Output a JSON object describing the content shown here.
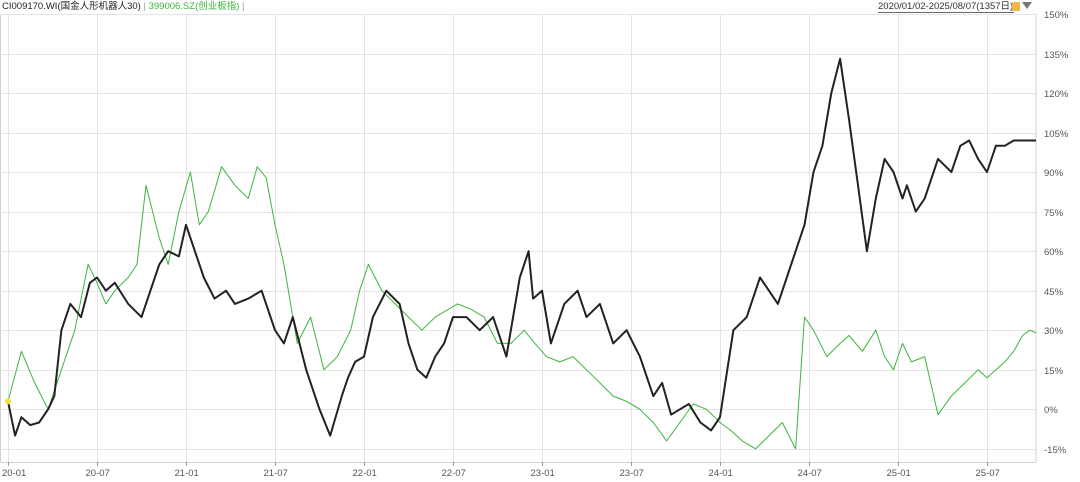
{
  "header": {
    "series1_label": "CI009170.WI(国金人形机器人30)",
    "separator": "|",
    "series2_label": "399006.SZ(创业板指)",
    "range_label": "2020/01/02-2025/08/07(1357日)",
    "colors": {
      "series1": "#222222",
      "series2": "#3db53d"
    }
  },
  "chart_data": {
    "type": "line",
    "x_axis": {
      "tick_labels": [
        "20-01",
        "20-07",
        "21-01",
        "21-07",
        "22-01",
        "22-07",
        "23-01",
        "23-07",
        "24-01",
        "24-07",
        "25-01",
        "25-07"
      ]
    },
    "y_axis": {
      "unit": "%",
      "ylim": [
        -20,
        150
      ],
      "ticks": [
        -15,
        0,
        15,
        30,
        45,
        60,
        75,
        90,
        105,
        120,
        135,
        150
      ],
      "tick_labels": [
        "-15%",
        "0%",
        "15%",
        "30%",
        "45%",
        "60%",
        "75%",
        "90%",
        "105%",
        "120%",
        "135%",
        "150%"
      ],
      "position": "right"
    },
    "grid": true,
    "series": [
      {
        "color": "#222222",
        "x": [
          0,
          0.08,
          0.15,
          0.25,
          0.35,
          0.45,
          0.52,
          0.6,
          0.7,
          0.82,
          0.92,
          1.0,
          1.1,
          1.2,
          1.35,
          1.5,
          1.6,
          1.7,
          1.8,
          1.92,
          2.0,
          2.1,
          2.2,
          2.32,
          2.45,
          2.55,
          2.7,
          2.85,
          3.0,
          3.1,
          3.2,
          3.35,
          3.5,
          3.62,
          3.75,
          3.82,
          3.9,
          4.0,
          4.1,
          4.25,
          4.4,
          4.5,
          4.6,
          4.7,
          4.8,
          4.9,
          5.0,
          5.15,
          5.3,
          5.45,
          5.6,
          5.75,
          5.85,
          5.9,
          6.0,
          6.1,
          6.25,
          6.4,
          6.5,
          6.65,
          6.8,
          6.95,
          7.1,
          7.25,
          7.35,
          7.45,
          7.55,
          7.65,
          7.78,
          7.9,
          8.0,
          8.15,
          8.3,
          8.45,
          8.55,
          8.65,
          8.75,
          8.85,
          8.95,
          9.05,
          9.15,
          9.25,
          9.35,
          9.45,
          9.55,
          9.65,
          9.75,
          9.85,
          9.95,
          10.05,
          10.1,
          10.2,
          10.3,
          10.45,
          10.6,
          10.7,
          10.8,
          10.9,
          11.0,
          11.1,
          11.2,
          11.3,
          11.4,
          11.48,
          11.55
        ],
        "y": [
          3,
          -10,
          -3,
          -6,
          -5,
          0,
          5,
          30,
          40,
          35,
          48,
          50,
          45,
          48,
          40,
          35,
          45,
          55,
          60,
          58,
          70,
          60,
          50,
          42,
          45,
          40,
          42,
          45,
          30,
          25,
          35,
          15,
          0,
          -10,
          5,
          12,
          18,
          20,
          35,
          45,
          40,
          25,
          15,
          12,
          20,
          25,
          35,
          35,
          30,
          35,
          20,
          50,
          60,
          42,
          45,
          25,
          40,
          45,
          35,
          40,
          25,
          30,
          20,
          5,
          10,
          -2,
          0,
          2,
          -5,
          -8,
          -3,
          30,
          35,
          50,
          45,
          40,
          50,
          60,
          70,
          90,
          100,
          120,
          133,
          110,
          85,
          60,
          80,
          95,
          90,
          80,
          85,
          75,
          80,
          95,
          90,
          100,
          102,
          95,
          90,
          100,
          100,
          102,
          102,
          102,
          102
        ]
      },
      {
        "color": "#3db53d",
        "x": [
          0,
          0.15,
          0.3,
          0.45,
          0.6,
          0.75,
          0.9,
          1.0,
          1.1,
          1.2,
          1.35,
          1.45,
          1.55,
          1.7,
          1.8,
          1.92,
          2.05,
          2.15,
          2.25,
          2.4,
          2.55,
          2.7,
          2.8,
          2.9,
          3.0,
          3.1,
          3.25,
          3.4,
          3.55,
          3.7,
          3.85,
          3.95,
          4.05,
          4.2,
          4.35,
          4.5,
          4.65,
          4.8,
          4.95,
          5.05,
          5.2,
          5.35,
          5.5,
          5.65,
          5.8,
          5.92,
          6.05,
          6.2,
          6.35,
          6.5,
          6.65,
          6.8,
          6.95,
          7.1,
          7.25,
          7.4,
          7.55,
          7.7,
          7.85,
          8.0,
          8.12,
          8.25,
          8.4,
          8.55,
          8.7,
          8.85,
          8.95,
          9.05,
          9.2,
          9.35,
          9.45,
          9.6,
          9.75,
          9.85,
          9.95,
          10.05,
          10.15,
          10.3,
          10.45,
          10.6,
          10.75,
          10.9,
          11.0,
          11.1,
          11.2,
          11.3,
          11.4,
          11.48,
          11.55
        ],
        "y": [
          3,
          22,
          10,
          0,
          15,
          30,
          55,
          48,
          40,
          45,
          50,
          55,
          85,
          65,
          55,
          75,
          90,
          70,
          75,
          92,
          85,
          80,
          92,
          88,
          70,
          55,
          25,
          35,
          15,
          20,
          30,
          45,
          55,
          45,
          40,
          35,
          30,
          35,
          38,
          40,
          38,
          35,
          25,
          25,
          30,
          25,
          20,
          18,
          20,
          15,
          10,
          5,
          3,
          0,
          -5,
          -12,
          -5,
          2,
          0,
          -5,
          -8,
          -12,
          -15,
          -10,
          -5,
          -15,
          35,
          30,
          20,
          25,
          28,
          22,
          30,
          20,
          15,
          25,
          18,
          20,
          -2,
          5,
          10,
          15,
          12,
          15,
          18,
          22,
          28,
          30,
          29
        ]
      }
    ]
  }
}
